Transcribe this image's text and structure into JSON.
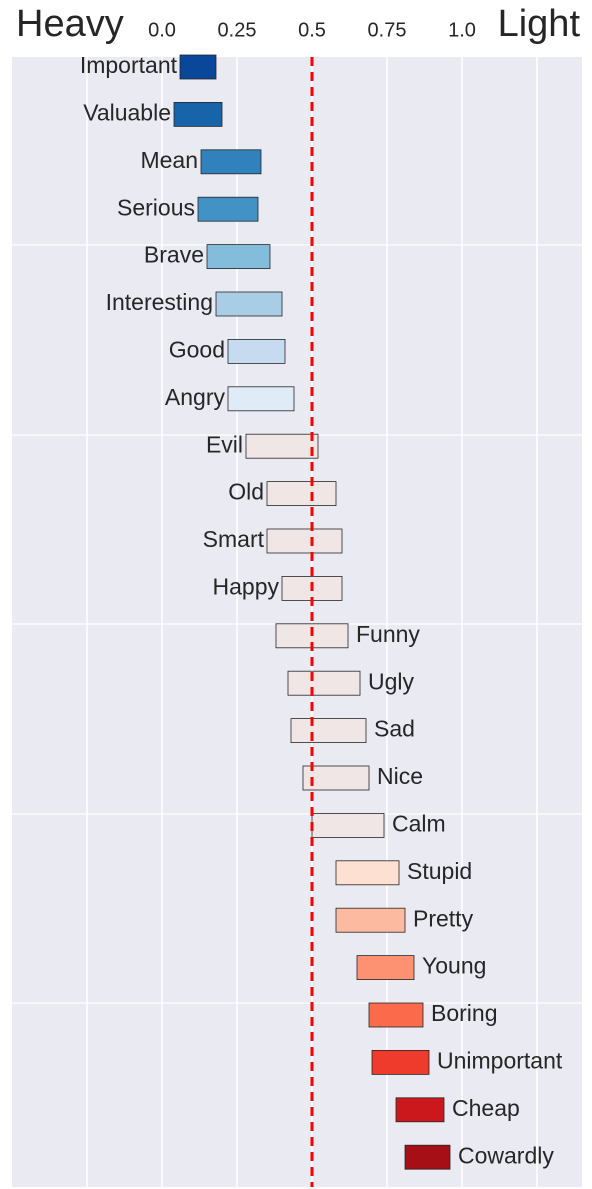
{
  "chart_data": {
    "type": "floating_bar",
    "left_label": "Heavy",
    "right_label": "Light",
    "categories": [
      "Important",
      "Valuable",
      "Mean",
      "Serious",
      "Brave",
      "Interesting",
      "Good",
      "Angry",
      "Evil",
      "Old",
      "Smart",
      "Happy",
      "Funny",
      "Ugly",
      "Sad",
      "Nice",
      "Calm",
      "Stupid",
      "Pretty",
      "Young",
      "Boring",
      "Unimportant",
      "Cheap",
      "Cowardly"
    ],
    "starts": [
      0.06,
      0.04,
      0.13,
      0.12,
      0.15,
      0.18,
      0.22,
      0.22,
      0.28,
      0.35,
      0.35,
      0.4,
      0.38,
      0.42,
      0.43,
      0.47,
      0.5,
      0.58,
      0.58,
      0.65,
      0.69,
      0.7,
      0.78,
      0.81
    ],
    "ends": [
      0.18,
      0.2,
      0.33,
      0.32,
      0.36,
      0.4,
      0.41,
      0.44,
      0.52,
      0.58,
      0.6,
      0.6,
      0.62,
      0.66,
      0.68,
      0.69,
      0.74,
      0.79,
      0.81,
      0.84,
      0.87,
      0.89,
      0.94,
      0.96
    ],
    "colors": [
      "#08479a",
      "#1764ab",
      "#3181bd",
      "#4292c6",
      "#84bcdb",
      "#a8cde5",
      "#c6dbef",
      "#dfebf7",
      "#f0e6e6",
      "#f0e6e6",
      "#f0e6e6",
      "#f0e6e6",
      "#f0e6e6",
      "#f0e6e6",
      "#f0e6e6",
      "#f0e6e6",
      "#f0e6e6",
      "#fee0d2",
      "#fcbba1",
      "#fc9272",
      "#fb6a4a",
      "#ef3b2c",
      "#cb181d",
      "#a50f15"
    ],
    "xlim": [
      -0.5,
      1.4
    ],
    "xticks": [
      {
        "value": -0.25,
        "label": null
      },
      {
        "value": 0,
        "label": "0.0"
      },
      0.25,
      0.5,
      0.75,
      {
        "value": 1,
        "label": "1.0"
      },
      {
        "value": 1.25,
        "label": null
      }
    ],
    "reference_line": {
      "value": 0.5,
      "color": "#ff0000"
    },
    "grid": true
  }
}
